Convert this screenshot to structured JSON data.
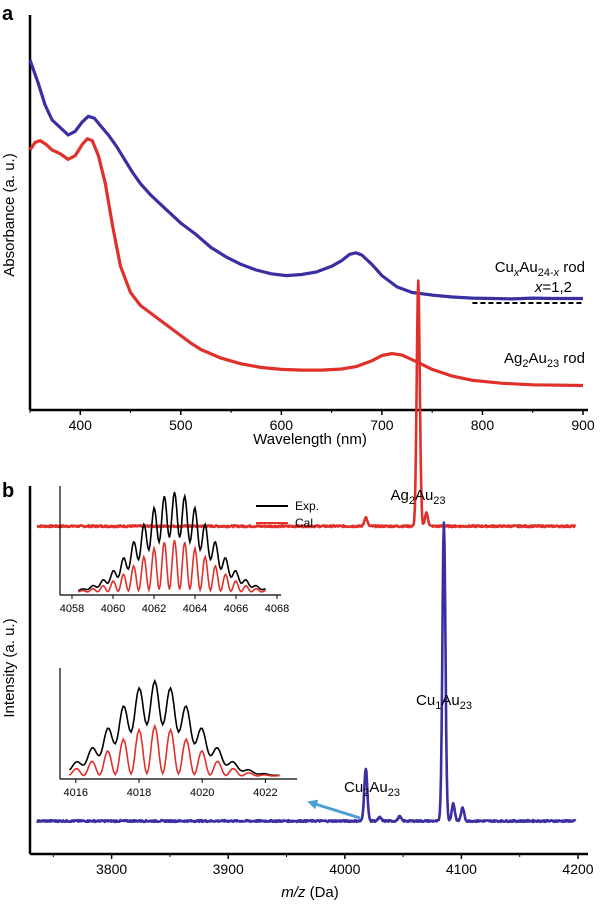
{
  "chart_data": [
    {
      "panel": "a",
      "type": "line",
      "xlabel": "Wavelength (nm)",
      "ylabel": "Absorbance (a. u.)",
      "xlim": [
        350,
        900
      ],
      "ylim": [
        0,
        1
      ],
      "x_ticks": [
        400,
        500,
        600,
        700,
        800,
        900
      ],
      "y_ticks": "none",
      "grid": false,
      "series": [
        {
          "name": "CuxAu24-x rod",
          "label_parts": {
            "a": "Cu",
            "x": "x",
            "b": "Au",
            "sub": "24-",
            "subx": "x",
            "c": " rod"
          },
          "label_line2": "=1,2",
          "label_line2_var": "x",
          "color": "#3a2fa0",
          "x": [
            350,
            358,
            365,
            372,
            380,
            388,
            395,
            402,
            408,
            414,
            420,
            428,
            436,
            444,
            452,
            460,
            470,
            480,
            490,
            500,
            515,
            530,
            545,
            560,
            575,
            590,
            605,
            620,
            635,
            650,
            660,
            668,
            674,
            680,
            690,
            700,
            715,
            730,
            750,
            770,
            790,
            810,
            830,
            850,
            870,
            900
          ],
          "y": [
            0.92,
            0.86,
            0.8,
            0.76,
            0.74,
            0.72,
            0.73,
            0.755,
            0.77,
            0.765,
            0.745,
            0.72,
            0.69,
            0.655,
            0.62,
            0.59,
            0.56,
            0.535,
            0.51,
            0.485,
            0.455,
            0.42,
            0.395,
            0.375,
            0.36,
            0.35,
            0.345,
            0.348,
            0.355,
            0.37,
            0.385,
            0.402,
            0.406,
            0.4,
            0.375,
            0.345,
            0.315,
            0.3,
            0.293,
            0.288,
            0.285,
            0.284,
            0.283,
            0.285,
            0.284,
            0.284
          ]
        },
        {
          "name": "Ag2Au23 rod",
          "label_parts": {
            "a": "Ag",
            "sub1": "2",
            "b": "Au",
            "sub2": "23",
            "c": " rod"
          },
          "color": "#e0302a",
          "x": [
            350,
            355,
            360,
            366,
            372,
            380,
            388,
            395,
            402,
            407,
            412,
            418,
            425,
            432,
            440,
            450,
            460,
            470,
            480,
            490,
            500,
            510,
            520,
            540,
            560,
            580,
            600,
            620,
            640,
            660,
            675,
            690,
            700,
            710,
            720,
            735,
            750,
            770,
            790,
            820,
            850,
            900
          ],
          "y": [
            0.68,
            0.7,
            0.705,
            0.695,
            0.68,
            0.67,
            0.655,
            0.665,
            0.695,
            0.71,
            0.705,
            0.665,
            0.59,
            0.48,
            0.37,
            0.3,
            0.265,
            0.245,
            0.225,
            0.205,
            0.185,
            0.165,
            0.148,
            0.125,
            0.11,
            0.1,
            0.095,
            0.093,
            0.093,
            0.096,
            0.103,
            0.118,
            0.132,
            0.137,
            0.133,
            0.115,
            0.095,
            0.077,
            0.066,
            0.058,
            0.054,
            0.052
          ]
        }
      ],
      "baseline_dashed": {
        "x_start": 790,
        "x_end": 900,
        "y": 0.272,
        "color": "#000000"
      }
    },
    {
      "panel": "b",
      "type": "line",
      "xlabel_italic": "m/z",
      "xlabel_rest": " (Da)",
      "ylabel": "Intensity (a. u.)",
      "xlim": [
        3730,
        4200
      ],
      "x_ticks": [
        3800,
        3900,
        4000,
        4100,
        4200
      ],
      "grid": false,
      "series": [
        {
          "name": "Ag2Au23 spectrum",
          "color": "#e0302a",
          "baseline": 0.745,
          "peaks": [
            {
              "x": 4063,
              "height": 0.56,
              "label_parts": {
                "a": "Ag",
                "s1": "2",
                "b": "Au",
                "s2": "23"
              }
            },
            {
              "x": 4018,
              "height": 0.02
            },
            {
              "x": 4070,
              "height": 0.03
            }
          ]
        },
        {
          "name": "CuxAu24-x spectrum",
          "color": "#3a2fa0",
          "baseline": 0.075,
          "peaks": [
            {
              "x": 4085,
              "height": 0.68,
              "label_parts": {
                "a": "Cu",
                "s1": "1",
                "b": "Au",
                "s2": "23"
              }
            },
            {
              "x": 4018,
              "height": 0.12,
              "label_parts": {
                "a": "Cu",
                "s1": "2",
                "b": "Au",
                "s2": "23"
              }
            },
            {
              "x": 4093,
              "height": 0.04
            },
            {
              "x": 4101,
              "height": 0.03
            },
            {
              "x": 4047,
              "height": 0.01
            },
            {
              "x": 4030,
              "height": 0.008
            }
          ]
        }
      ],
      "arrow": {
        "color": "#4a9fd8",
        "from": "Cu2Au23 peak",
        "to": "lower inset"
      },
      "insets": [
        {
          "name": "Ag2Au23 isotope pattern",
          "xlim": [
            4058,
            4068
          ],
          "x_ticks": [
            4058,
            4060,
            4062,
            4064,
            4066,
            4068
          ],
          "center": 4063,
          "legend": [
            {
              "label": "Exp.",
              "color": "#000000"
            },
            {
              "label": "Cal.",
              "color": "#e0302a"
            }
          ]
        },
        {
          "name": "Cu2Au23 isotope pattern",
          "xlim": [
            4015.5,
            4023
          ],
          "x_ticks": [
            4016,
            4018,
            4020,
            4022
          ],
          "center": 4018.5
        }
      ]
    }
  ]
}
